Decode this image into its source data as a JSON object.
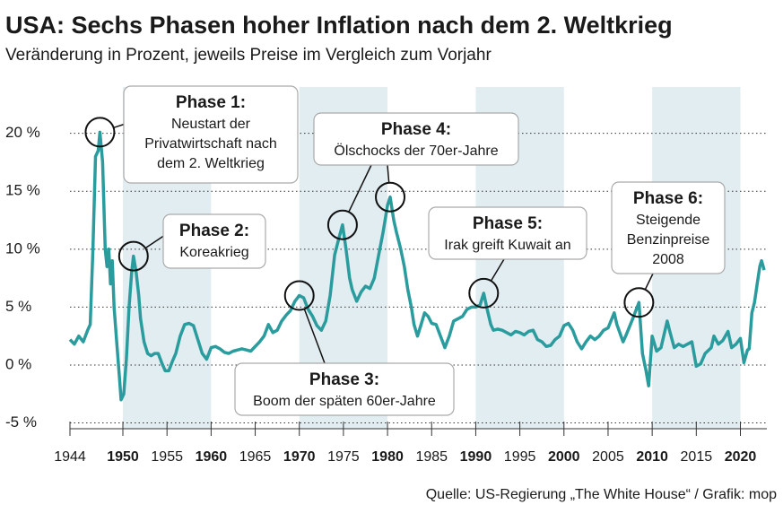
{
  "chart_data": {
    "type": "line",
    "title": "USA: Sechs Phasen hoher Inflation nach dem 2. Weltkrieg",
    "subtitle": "Veränderung in Prozent, jeweils Preise im Vergleich zum Vorjahr",
    "source": "Quelle: US-Regierung „The White House“ / Grafik: mop",
    "xlim": [
      1944,
      2023
    ],
    "ylim": [
      -5.5,
      24
    ],
    "xticks": [
      1944,
      1950,
      1955,
      1960,
      1965,
      1970,
      1975,
      1980,
      1985,
      1990,
      1995,
      2000,
      2005,
      2010,
      2015,
      2020
    ],
    "yticks": [
      {
        "value": -5,
        "label": "-5 %"
      },
      {
        "value": 0,
        "label": "0 %"
      },
      {
        "value": 5,
        "label": "5 %"
      },
      {
        "value": 10,
        "label": "10 %"
      },
      {
        "value": 15,
        "label": "15 %"
      },
      {
        "value": 20,
        "label": "20 %"
      }
    ],
    "grid": true,
    "shaded_ranges": [
      [
        1950,
        1960
      ],
      [
        1970,
        1980
      ],
      [
        1990,
        2000
      ],
      [
        2010,
        2020
      ]
    ],
    "shade_color": "#e2edf1",
    "series": [
      {
        "color": "#2b9c9e",
        "x": [
          1944,
          1944.5,
          1945,
          1945.5,
          1946,
          1946.3,
          1946.6,
          1946.9,
          1947.2,
          1947.4,
          1947.7,
          1948,
          1948.2,
          1948.4,
          1948.6,
          1948.8,
          1949,
          1949.3,
          1949.6,
          1949.8,
          1950.1,
          1950.4,
          1950.7,
          1951,
          1951.2,
          1951.5,
          1951.8,
          1952,
          1952.4,
          1952.8,
          1953.2,
          1953.6,
          1954,
          1954.4,
          1954.8,
          1955.2,
          1955.6,
          1956,
          1956.5,
          1957,
          1957.5,
          1958,
          1958.5,
          1959,
          1959.5,
          1960,
          1960.5,
          1961,
          1961.5,
          1962,
          1962.5,
          1963,
          1963.5,
          1964,
          1964.5,
          1965,
          1965.5,
          1966,
          1966.5,
          1967,
          1967.5,
          1968,
          1968.5,
          1969,
          1969.5,
          1970,
          1970.5,
          1971,
          1971.5,
          1972,
          1972.5,
          1973,
          1973.5,
          1974,
          1974.5,
          1974.9,
          1975.3,
          1975.7,
          1976,
          1976.5,
          1977,
          1977.5,
          1978,
          1978.5,
          1979,
          1979.5,
          1980,
          1980.3,
          1980.7,
          1981,
          1981.5,
          1981.9,
          1982.3,
          1982.7,
          1983,
          1983.4,
          1983.8,
          1984.2,
          1984.6,
          1985,
          1985.5,
          1986,
          1986.5,
          1987,
          1987.5,
          1988,
          1988.5,
          1989,
          1989.5,
          1990,
          1990.5,
          1990.9,
          1991.3,
          1991.7,
          1992,
          1992.5,
          1993,
          1993.5,
          1994,
          1994.5,
          1995,
          1995.5,
          1996,
          1996.5,
          1997,
          1997.5,
          1998,
          1998.5,
          1999,
          1999.5,
          2000,
          2000.5,
          2001,
          2001.5,
          2002,
          2002.5,
          2003,
          2003.5,
          2004,
          2004.5,
          2005,
          2005.7,
          2006,
          2006.7,
          2007,
          2007.8,
          2008.5,
          2008.9,
          2009.3,
          2009.6,
          2010,
          2010.5,
          2011,
          2011.7,
          2012,
          2012.5,
          2013,
          2013.5,
          2014,
          2014.5,
          2015,
          2015.5,
          2016,
          2016.7,
          2017,
          2017.5,
          2018,
          2018.6,
          2019,
          2019.5,
          2020,
          2020.4,
          2020.8,
          2021,
          2021.3,
          2021.6,
          2021.9,
          2022.2,
          2022.4,
          2022.7
        ],
        "values": [
          2.2,
          1.8,
          2.5,
          2.0,
          3.0,
          3.5,
          10,
          18,
          18.5,
          20.1,
          17.5,
          10,
          8.5,
          10,
          7,
          9,
          5,
          2,
          -1,
          -3,
          -2.5,
          0.5,
          5,
          8,
          9.4,
          8,
          6,
          4,
          2,
          1,
          0.8,
          1,
          1,
          0.2,
          -0.5,
          -0.5,
          0.3,
          1.0,
          2.5,
          3.5,
          3.6,
          3.4,
          2.2,
          1,
          0.5,
          1.5,
          1.6,
          1.4,
          1.1,
          1.0,
          1.2,
          1.3,
          1.4,
          1.3,
          1.2,
          1.6,
          2.0,
          2.5,
          3.5,
          2.8,
          3.0,
          3.8,
          4.3,
          4.7,
          5.5,
          6.0,
          5.8,
          4.8,
          4.2,
          3.4,
          3.0,
          3.8,
          6,
          9.5,
          11,
          12.1,
          10,
          7.5,
          6.5,
          5.5,
          6.3,
          6.8,
          6.6,
          7.5,
          9.5,
          11.5,
          13.8,
          14.5,
          12.5,
          11.5,
          10,
          8.5,
          6.5,
          5,
          3.5,
          2.5,
          3.5,
          4.5,
          4.2,
          3.6,
          3.5,
          2.5,
          1.5,
          2.5,
          3.8,
          4.0,
          4.2,
          4.8,
          5.0,
          5.0,
          5.2,
          6.2,
          4.8,
          3.5,
          3.0,
          3.1,
          3.0,
          2.8,
          2.6,
          2.9,
          2.8,
          2.6,
          2.9,
          3.0,
          2.2,
          2.0,
          1.6,
          1.7,
          2.2,
          2.5,
          3.4,
          3.6,
          3.0,
          2.0,
          1.4,
          2.0,
          2.5,
          2.2,
          2.5,
          3.0,
          3.2,
          4.5,
          3.5,
          2.0,
          2.5,
          4.0,
          5.4,
          1.0,
          -0.5,
          -1.8,
          2.5,
          1.2,
          1.5,
          3.8,
          2.9,
          1.5,
          1.8,
          1.6,
          1.8,
          2.0,
          -0.1,
          0.1,
          1.0,
          1.5,
          2.5,
          1.8,
          2.1,
          2.9,
          1.5,
          1.8,
          2.3,
          0.2,
          1.3,
          1.4,
          4.5,
          5.4,
          7.0,
          8.5,
          9.0,
          8.2
        ]
      }
    ],
    "annotations": [
      {
        "title": "Phase 1:",
        "lines": [
          "Neustart der",
          "Privatwirtschaft nach",
          "dem 2. Weltkrieg"
        ],
        "points": [
          [
            1947.4,
            20.1
          ]
        ]
      },
      {
        "title": "Phase 2:",
        "lines": [
          "Koreakrieg"
        ],
        "points": [
          [
            1951.2,
            9.4
          ]
        ]
      },
      {
        "title": "Phase 3:",
        "lines": [
          "Boom der späten 60er-Jahre"
        ],
        "points": [
          [
            1970,
            6.0
          ]
        ]
      },
      {
        "title": "Phase 4:",
        "lines": [
          "Ölschocks der 70er-Jahre"
        ],
        "points": [
          [
            1974.9,
            12.1
          ],
          [
            1980.3,
            14.5
          ]
        ]
      },
      {
        "title": "Phase 5:",
        "lines": [
          "Irak greift Kuwait an"
        ],
        "points": [
          [
            1990.9,
            6.2
          ]
        ]
      },
      {
        "title": "Phase 6:",
        "lines": [
          "Steigende",
          "Benzinpreise",
          "2008"
        ],
        "points": [
          [
            2008.5,
            5.4
          ]
        ]
      }
    ]
  }
}
